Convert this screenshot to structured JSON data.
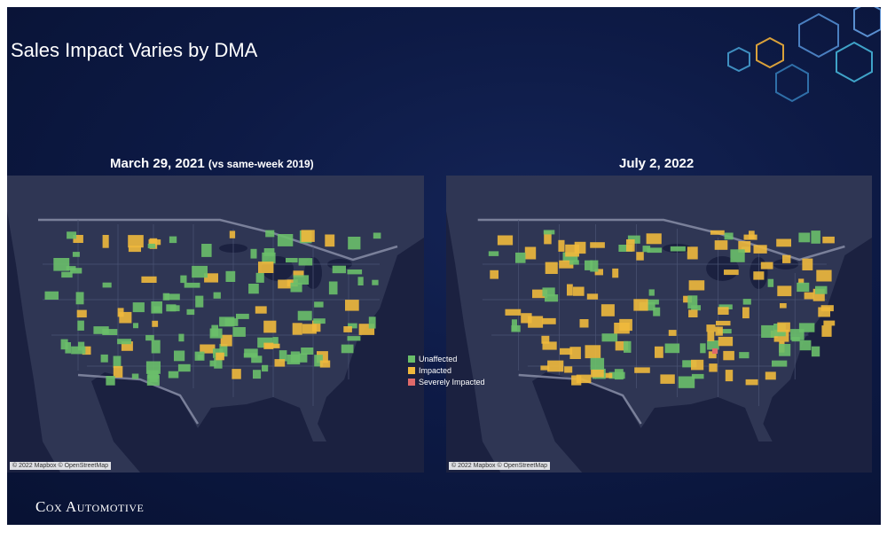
{
  "slide": {
    "title": "Sales Impact Varies by DMA"
  },
  "maps": [
    {
      "title": "March 29, 2021",
      "subtitle": "(vs same-week 2019)",
      "credit": "© 2022 Mapbox © OpenStreetMap"
    },
    {
      "title": "July 2, 2022",
      "subtitle": "",
      "credit": "© 2022 Mapbox © OpenStreetMap"
    }
  ],
  "legend": {
    "items": [
      {
        "label": "Unaffected",
        "color": "#6abf6a"
      },
      {
        "label": "Impacted",
        "color": "#f0b93c"
      },
      {
        "label": "Severely Impacted",
        "color": "#e06a6a"
      }
    ]
  },
  "brand": {
    "name": "Cox Automotive"
  },
  "colors": {
    "background": "#0d1a45",
    "map_land": "#2c3350",
    "water": "#1b2140"
  }
}
